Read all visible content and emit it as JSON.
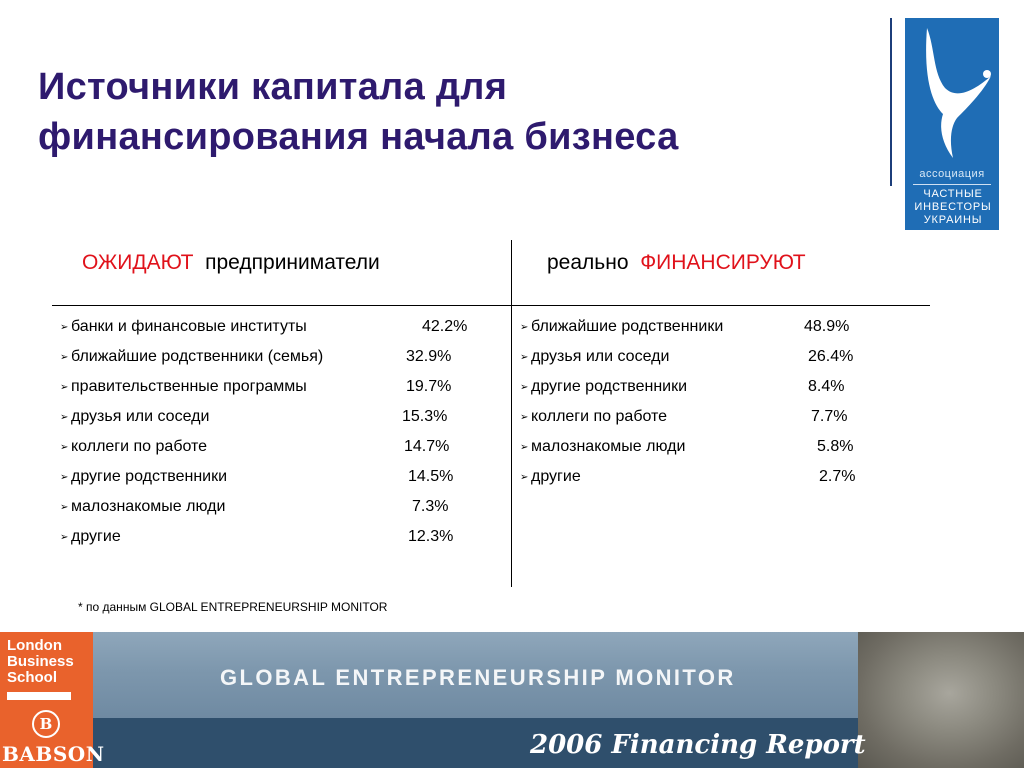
{
  "title": {
    "line1": "Источники  капитала для",
    "line2": "финансирования начала бизнеса"
  },
  "logo": {
    "association": "ассоциация",
    "name_line1": "ЧАСТНЫЕ",
    "name_line2": "ИНВЕСТОРЫ",
    "name_line3": "УКРАИНЫ",
    "color": "#1f6db5"
  },
  "columns": {
    "left": {
      "header_highlight": "ОЖИДАЮТ",
      "header_rest": "предприниматели",
      "items": [
        {
          "label": "банки  и  финансовые  институты",
          "value": "42.2%"
        },
        {
          "label": "ближайшие  родственники  (семья)",
          "value": "32.9%"
        },
        {
          "label": "правительственные  программы",
          "value": "19.7%"
        },
        {
          "label": "друзья  или  соседи",
          "value": "15.3%"
        },
        {
          "label": "коллеги  по  работе",
          "value": "14.7%"
        },
        {
          "label": "другие  родственники",
          "value": "14.5%"
        },
        {
          "label": "малознакомые  люди",
          "value": "7.3%"
        },
        {
          "label": "другие",
          "value": "12.3%"
        }
      ]
    },
    "right": {
      "header_rest": "реально",
      "header_highlight": "ФИНАНСИРУЮТ",
      "items": [
        {
          "label": "ближайшие  родственники",
          "value": "48.9%"
        },
        {
          "label": "друзья  или  соседи",
          "value": "26.4%"
        },
        {
          "label": "другие  родственники",
          "value": "8.4%"
        },
        {
          "label": "коллеги  по  работе",
          "value": "7.7%"
        },
        {
          "label": "малознакомые  люди",
          "value": "5.8%"
        },
        {
          "label": "другие",
          "value": "2.7%"
        }
      ]
    },
    "highlight_color": "#e0121b",
    "bullet_icon": "arrow-bullet-icon"
  },
  "footnote": "* по  данным GLOBAL ENTREPRENEURSHIP MONITOR",
  "banner": {
    "title": "GLOBAL ENTREPRENEURSHIP MONITOR",
    "report": "2006 Financing Report",
    "lbs_line1": "London",
    "lbs_line2": "Business",
    "lbs_line3": "School",
    "babson": "BABSON",
    "lbs_color": "#e9622c"
  }
}
